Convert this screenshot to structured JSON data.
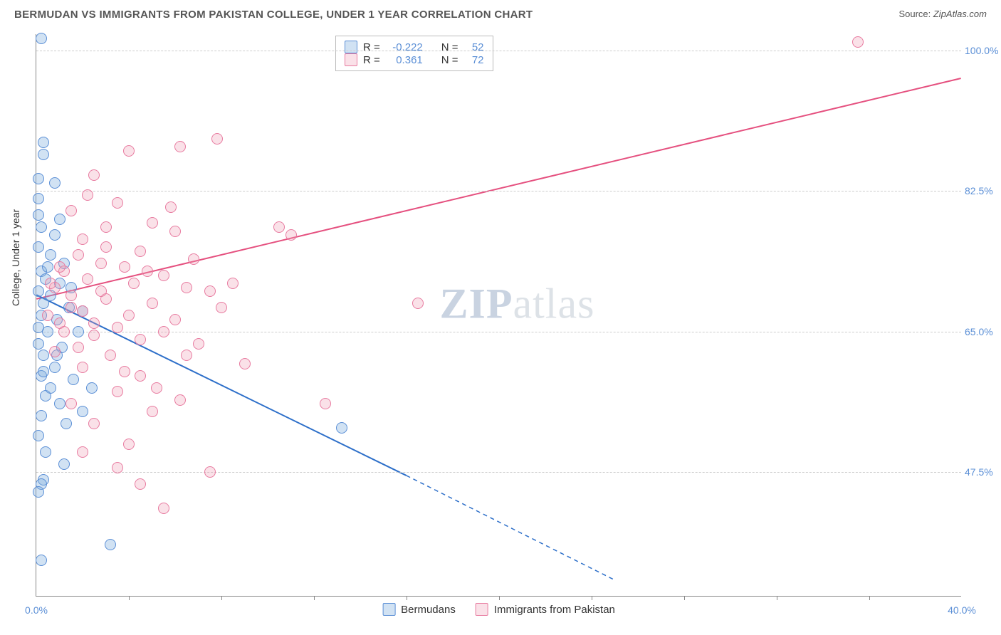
{
  "title": "BERMUDAN VS IMMIGRANTS FROM PAKISTAN COLLEGE, UNDER 1 YEAR CORRELATION CHART",
  "source_label": "Source: ",
  "source_name": "ZipAtlas.com",
  "watermark": {
    "zip": "ZIP",
    "atlas": "atlas"
  },
  "chart": {
    "type": "scatter-correlation",
    "background_color": "#ffffff",
    "grid_color": "#cccccc",
    "axis_color": "#888888",
    "text_color": "#333333",
    "value_color": "#5b8fd6",
    "ylabel": "College, Under 1 year",
    "ylabel_fontsize": 14,
    "xlim": [
      0.0,
      40.0
    ],
    "ylim": [
      32.0,
      102.0
    ],
    "yticks": [
      {
        "v": 47.5,
        "label": "47.5%"
      },
      {
        "v": 65.0,
        "label": "65.0%"
      },
      {
        "v": 82.5,
        "label": "82.5%"
      },
      {
        "v": 100.0,
        "label": "100.0%"
      }
    ],
    "xticks_minor": [
      4,
      8,
      12,
      16,
      20,
      24,
      28,
      32,
      36
    ],
    "xticks_labels": [
      {
        "v": 0.0,
        "label": "0.0%"
      },
      {
        "v": 40.0,
        "label": "40.0%"
      }
    ],
    "series": [
      {
        "name": "Bermudans",
        "color_fill": "rgba(122,173,222,0.35)",
        "color_stroke": "#5b8fd6",
        "R": -0.222,
        "N": 52,
        "trend": {
          "x1": 0,
          "y1": 69.5,
          "x2_solid": 16,
          "y2_solid": 47.0,
          "x2_dash": 25,
          "y2_dash": 34.0,
          "color": "#2d6fc9",
          "width": 2
        },
        "points": [
          [
            0.2,
            101.5
          ],
          [
            0.3,
            88.5
          ],
          [
            0.3,
            87.0
          ],
          [
            0.1,
            84.0
          ],
          [
            0.8,
            83.5
          ],
          [
            0.1,
            81.5
          ],
          [
            0.1,
            79.5
          ],
          [
            1.0,
            79.0
          ],
          [
            0.2,
            78.0
          ],
          [
            0.8,
            77.0
          ],
          [
            0.1,
            75.5
          ],
          [
            0.6,
            74.5
          ],
          [
            1.2,
            73.5
          ],
          [
            0.2,
            72.5
          ],
          [
            0.4,
            71.5
          ],
          [
            1.0,
            71.0
          ],
          [
            0.1,
            70.0
          ],
          [
            0.6,
            69.5
          ],
          [
            0.3,
            68.5
          ],
          [
            1.4,
            68.0
          ],
          [
            0.2,
            67.0
          ],
          [
            0.9,
            66.5
          ],
          [
            0.1,
            65.5
          ],
          [
            0.5,
            65.0
          ],
          [
            0.1,
            63.5
          ],
          [
            1.1,
            63.0
          ],
          [
            0.3,
            62.0
          ],
          [
            0.8,
            60.5
          ],
          [
            0.2,
            59.5
          ],
          [
            1.6,
            59.0
          ],
          [
            2.4,
            58.0
          ],
          [
            0.4,
            57.0
          ],
          [
            1.0,
            56.0
          ],
          [
            0.2,
            54.5
          ],
          [
            2.0,
            55.0
          ],
          [
            0.1,
            52.0
          ],
          [
            0.4,
            50.0
          ],
          [
            1.2,
            48.5
          ],
          [
            0.3,
            46.5
          ],
          [
            0.2,
            46.0
          ],
          [
            0.1,
            45.0
          ],
          [
            3.2,
            38.5
          ],
          [
            0.2,
            36.5
          ],
          [
            13.2,
            53.0
          ],
          [
            2.0,
            67.5
          ],
          [
            1.5,
            70.5
          ],
          [
            0.5,
            73.0
          ],
          [
            1.8,
            65.0
          ],
          [
            0.9,
            62.0
          ],
          [
            0.3,
            60.0
          ],
          [
            0.6,
            58.0
          ],
          [
            1.3,
            53.5
          ]
        ]
      },
      {
        "name": "Immigrants from Pakistan",
        "color_fill": "rgba(240,155,180,0.30)",
        "color_stroke": "#e87ba0",
        "R": 0.361,
        "N": 72,
        "trend": {
          "x1": 0,
          "y1": 69.0,
          "x2_solid": 40,
          "y2_solid": 96.5,
          "color": "#e5507f",
          "width": 2
        },
        "points": [
          [
            35.5,
            101.0
          ],
          [
            7.8,
            89.0
          ],
          [
            6.2,
            88.0
          ],
          [
            4.0,
            87.5
          ],
          [
            2.5,
            84.5
          ],
          [
            3.5,
            81.0
          ],
          [
            1.5,
            80.0
          ],
          [
            5.0,
            78.5
          ],
          [
            6.0,
            77.5
          ],
          [
            2.0,
            76.5
          ],
          [
            3.0,
            75.5
          ],
          [
            4.5,
            75.0
          ],
          [
            1.8,
            74.5
          ],
          [
            2.8,
            73.5
          ],
          [
            3.8,
            73.0
          ],
          [
            5.5,
            72.0
          ],
          [
            1.2,
            72.5
          ],
          [
            2.2,
            71.5
          ],
          [
            4.2,
            71.0
          ],
          [
            6.5,
            70.5
          ],
          [
            7.5,
            70.0
          ],
          [
            1.5,
            69.5
          ],
          [
            3.0,
            69.0
          ],
          [
            5.0,
            68.5
          ],
          [
            8.0,
            68.0
          ],
          [
            10.5,
            78.0
          ],
          [
            2.0,
            67.5
          ],
          [
            4.0,
            67.0
          ],
          [
            6.0,
            66.5
          ],
          [
            8.5,
            71.0
          ],
          [
            1.0,
            66.0
          ],
          [
            3.5,
            65.5
          ],
          [
            5.5,
            65.0
          ],
          [
            2.5,
            64.5
          ],
          [
            4.5,
            64.0
          ],
          [
            7.0,
            63.5
          ],
          [
            1.8,
            63.0
          ],
          [
            3.2,
            62.0
          ],
          [
            6.5,
            62.0
          ],
          [
            9.0,
            61.0
          ],
          [
            2.0,
            60.5
          ],
          [
            4.5,
            59.5
          ],
          [
            6.2,
            56.5
          ],
          [
            3.5,
            57.5
          ],
          [
            5.0,
            55.0
          ],
          [
            11.0,
            77.0
          ],
          [
            2.5,
            53.5
          ],
          [
            7.5,
            47.5
          ],
          [
            4.0,
            51.0
          ],
          [
            5.5,
            43.0
          ],
          [
            16.5,
            68.5
          ],
          [
            12.5,
            56.0
          ],
          [
            1.5,
            68.0
          ],
          [
            2.8,
            70.0
          ],
          [
            4.8,
            72.5
          ],
          [
            6.8,
            74.0
          ],
          [
            0.8,
            70.5
          ],
          [
            1.2,
            65.0
          ],
          [
            0.5,
            67.0
          ],
          [
            3.0,
            78.0
          ],
          [
            5.8,
            80.5
          ],
          [
            2.2,
            82.0
          ],
          [
            1.0,
            73.0
          ],
          [
            0.6,
            71.0
          ],
          [
            2.5,
            66.0
          ],
          [
            3.8,
            60.0
          ],
          [
            5.2,
            58.0
          ],
          [
            1.5,
            56.0
          ],
          [
            0.8,
            62.5
          ],
          [
            2.0,
            50.0
          ],
          [
            3.5,
            48.0
          ],
          [
            4.5,
            46.0
          ]
        ]
      }
    ],
    "legend_top": {
      "r_label": "R =",
      "n_label": "N ="
    }
  }
}
